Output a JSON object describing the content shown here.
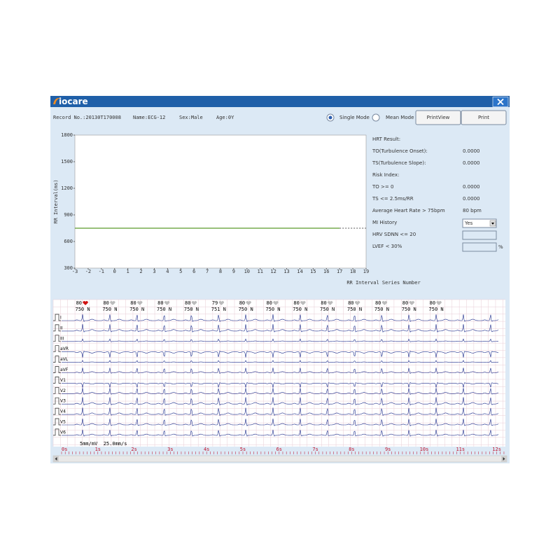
{
  "window": {
    "logo": "iocare"
  },
  "header": {
    "record": "Record No.:20130T170008",
    "name": "Name:ECG-12",
    "sex": "Sex:Male",
    "age": "Age:0Y",
    "single_mode": "Single Mode",
    "mean_mode": "Mean Mode",
    "print_view": "PrintView",
    "print": "Print"
  },
  "rr_chart": {
    "type": "line",
    "ylabel": "RR Interval(ms)",
    "xlabel": "RR Interval Series Number",
    "xlim": [
      -3,
      19
    ],
    "ylim": [
      300,
      1800
    ],
    "xticks": [
      -3,
      -2,
      -1,
      0,
      1,
      2,
      3,
      4,
      5,
      6,
      7,
      8,
      9,
      10,
      11,
      12,
      13,
      14,
      15,
      16,
      17,
      18,
      19
    ],
    "yticks": [
      300,
      600,
      900,
      1200,
      1500,
      1800
    ],
    "series": [
      {
        "color": "#5a9a2a",
        "x": [
          -3,
          17
        ],
        "values": [
          750,
          750
        ]
      }
    ],
    "projection": {
      "color": "#777777",
      "x": [
        17,
        19
      ],
      "values": [
        750,
        750
      ]
    }
  },
  "hrt": {
    "title": "HRT Result:",
    "rows": [
      {
        "label": "TO(Turbulence Onset):",
        "value": "0.0000"
      },
      {
        "label": "TS(Turbulence Slope):",
        "value": "0.0000"
      }
    ],
    "risk_title": "Risk Index:",
    "risk_rows": [
      {
        "label": "TO >= 0",
        "value": "0.0000"
      },
      {
        "label": "TS <= 2.5ms/RR",
        "value": "0.0000"
      },
      {
        "label": "Average Heart Rate > 75bpm",
        "value": "80 bpm"
      }
    ],
    "mi_history": {
      "label": "MI History",
      "value": "Yes"
    },
    "hrv": "HRV SDNN <= 20",
    "lvef": "LVEF < 30%",
    "lvef_unit": "%"
  },
  "ecg": {
    "beats": [
      {
        "hr": 80,
        "rr": "750 N"
      },
      {
        "hr": 80,
        "rr": "750 N"
      },
      {
        "hr": 80,
        "rr": "750 N"
      },
      {
        "hr": 80,
        "rr": "750 N"
      },
      {
        "hr": 80,
        "rr": "750 N"
      },
      {
        "hr": 79,
        "rr": "751 N"
      },
      {
        "hr": 80,
        "rr": "750 N"
      },
      {
        "hr": 80,
        "rr": "750 N"
      },
      {
        "hr": 80,
        "rr": "750 N"
      },
      {
        "hr": 80,
        "rr": "750 N"
      },
      {
        "hr": 80,
        "rr": "750 N"
      },
      {
        "hr": 80,
        "rr": "750 N"
      },
      {
        "hr": 80,
        "rr": "750 N"
      },
      {
        "hr": 80,
        "rr": "750 N"
      }
    ],
    "leads": [
      "I",
      "II",
      "III",
      "aVR",
      "aVL",
      "aVF",
      "V1",
      "V2",
      "V3",
      "V4",
      "V5",
      "V6"
    ],
    "scale": "5mm/mV  25.0mm/s",
    "time_labels": [
      "0s",
      "1s",
      "2s",
      "3s",
      "4s",
      "5s",
      "6s",
      "7s",
      "8s",
      "9s",
      "10s",
      "11s",
      "12s"
    ]
  }
}
